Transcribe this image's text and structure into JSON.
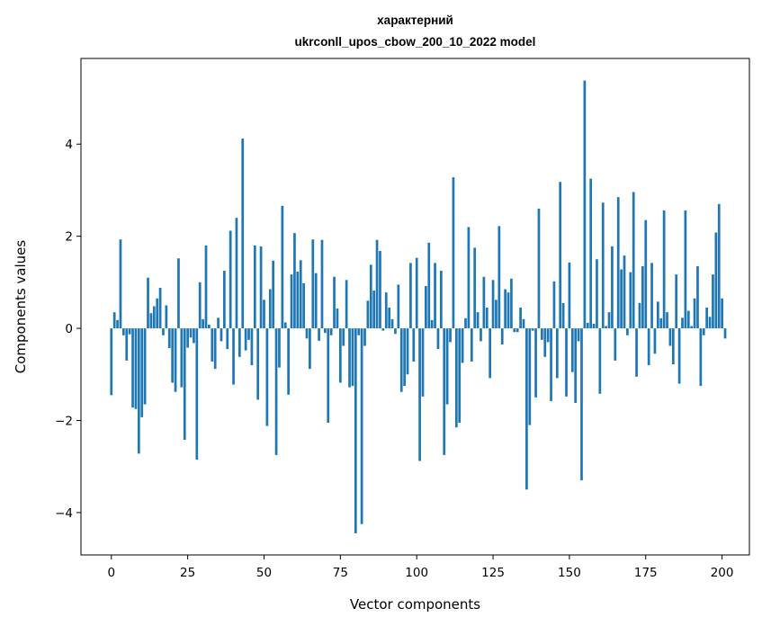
{
  "chart_data": {
    "type": "bar",
    "title_line1": "характерний",
    "title_line2": "ukrconll_upos_cbow_200_10_2022 model",
    "xlabel": "Vector components",
    "ylabel": "Components values",
    "xlim": [
      -9.95,
      208.95
    ],
    "ylim": [
      -4.92,
      5.86
    ],
    "xticks": [
      0,
      25,
      50,
      75,
      100,
      125,
      150,
      175,
      200
    ],
    "yticks": [
      -4,
      -2,
      0,
      2,
      4
    ],
    "bar_color": "#1f77b4",
    "values": [
      -1.45,
      0.35,
      0.18,
      1.93,
      -0.15,
      -0.7,
      -0.13,
      -1.72,
      -1.75,
      -2.72,
      -1.93,
      -1.65,
      1.1,
      0.33,
      0.48,
      0.65,
      0.88,
      -0.15,
      0.5,
      -0.43,
      -1.18,
      -1.38,
      1.52,
      -1.28,
      -2.42,
      -0.42,
      -0.2,
      -0.32,
      -2.85,
      1.0,
      0.2,
      1.8,
      0.08,
      -0.72,
      -0.88,
      0.23,
      -0.28,
      1.25,
      -0.45,
      2.12,
      -1.22,
      2.4,
      -0.62,
      4.12,
      -0.48,
      -0.25,
      -0.8,
      1.8,
      -1.55,
      1.78,
      0.62,
      -2.12,
      0.85,
      1.47,
      -2.75,
      -0.85,
      2.66,
      0.13,
      -1.44,
      1.17,
      2.07,
      1.23,
      1.48,
      0.98,
      -0.22,
      -0.88,
      1.93,
      1.2,
      -0.27,
      1.92,
      -0.1,
      -2.05,
      -0.15,
      1.12,
      0.43,
      -1.18,
      -0.38,
      1.05,
      -1.28,
      -1.25,
      -4.45,
      -0.15,
      -4.25,
      -0.38,
      0.6,
      1.38,
      0.82,
      1.92,
      1.68,
      -0.05,
      0.78,
      0.45,
      0.2,
      -0.12,
      0.95,
      -1.38,
      -1.25,
      -1.0,
      1.42,
      -0.72,
      1.53,
      -2.88,
      -1.48,
      0.92,
      1.86,
      0.18,
      1.42,
      -0.45,
      1.25,
      -2.75,
      -1.65,
      -0.3,
      3.28,
      -2.15,
      -2.05,
      -0.75,
      0.22,
      2.2,
      -0.72,
      1.75,
      0.35,
      -0.28,
      1.12,
      0.45,
      -1.08,
      1.05,
      0.62,
      2.22,
      -0.35,
      0.85,
      0.78,
      1.08,
      -0.08,
      -0.08,
      0.45,
      0.2,
      -3.5,
      -2.1,
      -0.05,
      -1.5,
      2.6,
      -0.25,
      -0.62,
      -0.3,
      -1.58,
      1.02,
      -1.08,
      3.18,
      0.55,
      -1.48,
      1.43,
      -0.95,
      -1.62,
      -0.28,
      -3.3,
      5.38,
      0.12,
      3.25,
      0.1,
      1.5,
      -1.42,
      2.73,
      0.05,
      0.35,
      1.78,
      -0.7,
      2.85,
      1.28,
      1.58,
      -0.15,
      1.22,
      2.96,
      -1.05,
      0.55,
      1.35,
      2.35,
      -0.8,
      1.42,
      -0.55,
      0.58,
      0.22,
      2.56,
      0.35,
      -0.38,
      -0.78,
      1.17,
      -1.2,
      0.23,
      2.56,
      0.38,
      0.05,
      0.65,
      1.35,
      -1.25,
      -0.15,
      0.45,
      0.25,
      1.17,
      2.08,
      2.7,
      0.65,
      -0.22
    ]
  }
}
